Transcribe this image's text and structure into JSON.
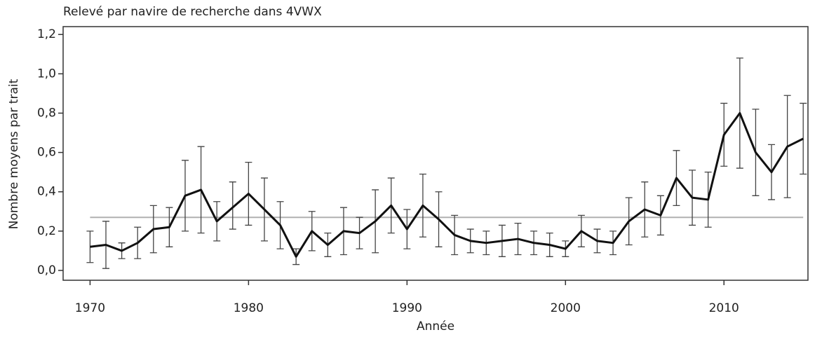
{
  "chart_data": {
    "type": "line",
    "title": "Relevé par navire de recherche dans 4VWX",
    "x_label": "Année",
    "y_label": "Nombre moyens par trait",
    "x": [
      1970,
      1971,
      1972,
      1973,
      1974,
      1975,
      1976,
      1977,
      1978,
      1979,
      1980,
      1981,
      1982,
      1983,
      1984,
      1985,
      1986,
      1987,
      1988,
      1989,
      1990,
      1991,
      1992,
      1993,
      1994,
      1995,
      1996,
      1997,
      1998,
      1999,
      2000,
      2001,
      2002,
      2003,
      2004,
      2005,
      2006,
      2007,
      2008,
      2009,
      2010,
      2011,
      2012,
      2013,
      2014,
      2015
    ],
    "series": [
      {
        "color": "#111111",
        "values": [
          0.12,
          0.13,
          0.1,
          0.14,
          0.21,
          0.22,
          0.38,
          0.41,
          0.25,
          0.32,
          0.39,
          0.31,
          0.23,
          0.07,
          0.2,
          0.13,
          0.2,
          0.19,
          0.25,
          0.33,
          0.21,
          0.33,
          0.26,
          0.18,
          0.15,
          0.14,
          0.15,
          0.16,
          0.14,
          0.13,
          0.11,
          0.2,
          0.15,
          0.14,
          0.25,
          0.31,
          0.28,
          0.47,
          0.37,
          0.36,
          0.69,
          0.8,
          0.6,
          0.5,
          0.63,
          0.67
        ],
        "lower": [
          0.04,
          0.01,
          0.06,
          0.06,
          0.09,
          0.12,
          0.2,
          0.19,
          0.15,
          0.21,
          0.23,
          0.15,
          0.11,
          0.03,
          0.1,
          0.07,
          0.08,
          0.11,
          0.09,
          0.19,
          0.11,
          0.17,
          0.12,
          0.08,
          0.09,
          0.08,
          0.07,
          0.08,
          0.08,
          0.07,
          0.07,
          0.12,
          0.09,
          0.08,
          0.13,
          0.17,
          0.18,
          0.33,
          0.23,
          0.22,
          0.53,
          0.52,
          0.38,
          0.36,
          0.37,
          0.49
        ],
        "upper": [
          0.2,
          0.25,
          0.14,
          0.22,
          0.33,
          0.32,
          0.56,
          0.63,
          0.35,
          0.45,
          0.55,
          0.47,
          0.35,
          0.11,
          0.3,
          0.19,
          0.32,
          0.27,
          0.41,
          0.47,
          0.31,
          0.49,
          0.4,
          0.28,
          0.21,
          0.2,
          0.23,
          0.24,
          0.2,
          0.19,
          0.15,
          0.28,
          0.21,
          0.2,
          0.37,
          0.45,
          0.38,
          0.61,
          0.51,
          0.5,
          0.85,
          1.08,
          0.82,
          0.64,
          0.89,
          0.85
        ]
      }
    ],
    "reference_line": 0.27,
    "reference_color": "#b0b0b0",
    "xlim": [
      1968.3,
      2015.3
    ],
    "xticks": [
      1970,
      1980,
      1990,
      2000,
      2010
    ],
    "ylim": [
      -0.05,
      1.24
    ],
    "yticks": [
      {
        "value": 0,
        "label": "0,0"
      },
      {
        "value": 0.2,
        "label": "0,2"
      },
      {
        "value": 0.4,
        "label": "0,4"
      },
      {
        "value": 0.6,
        "label": "0,6"
      },
      {
        "value": 0.8,
        "label": "0,8"
      },
      {
        "value": 1.0,
        "label": "1,0"
      },
      {
        "value": 1.2,
        "label": "1,2"
      }
    ]
  }
}
